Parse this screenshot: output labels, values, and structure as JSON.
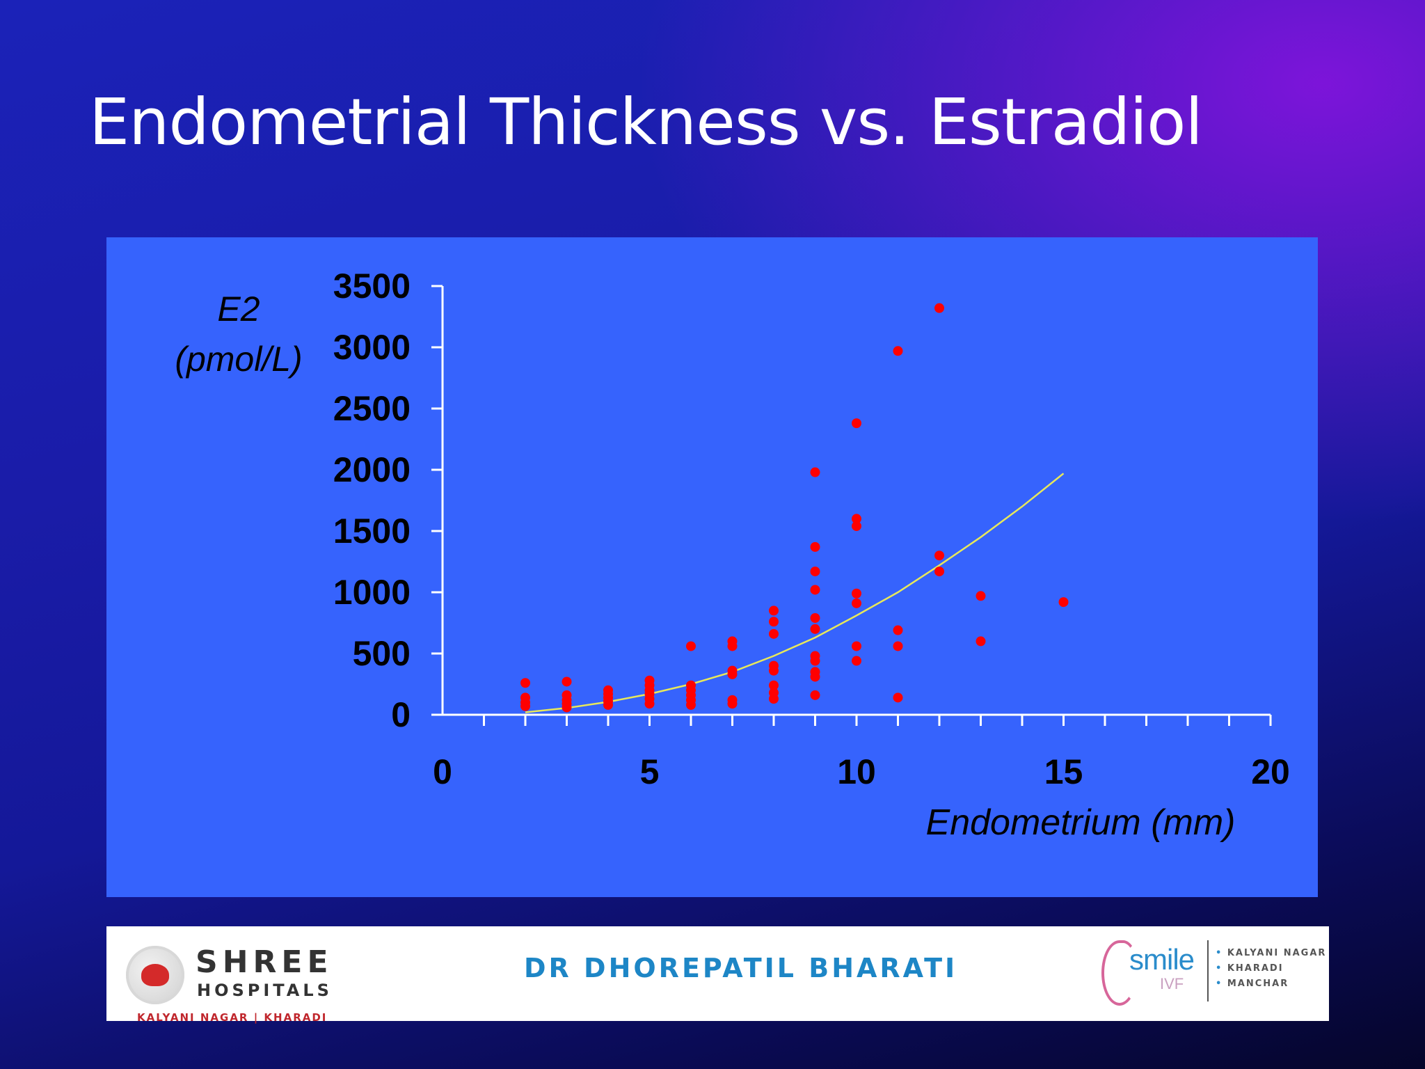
{
  "slide": {
    "title": "Endometrial Thickness vs. Estradiol"
  },
  "chart_data": {
    "type": "scatter",
    "title": "Endometrial Thickness vs. Estradiol",
    "xlabel": "Endometrium (mm)",
    "ylabel_line1": "E2",
    "ylabel_line2": "(pmol/L)",
    "xlim": [
      0,
      20
    ],
    "ylim": [
      0,
      3500
    ],
    "x_ticks": [
      0,
      5,
      10,
      15,
      20
    ],
    "y_ticks": [
      0,
      500,
      1000,
      1500,
      2000,
      2500,
      3000,
      3500
    ],
    "grid": false,
    "colors": {
      "points": "#ff0000",
      "trendline": "#e8e85a",
      "axis": "#ffffff",
      "panel": "#3663fd"
    },
    "series": [
      {
        "name": "Patients",
        "points": [
          [
            2,
            260
          ],
          [
            2,
            140
          ],
          [
            2,
            100
          ],
          [
            2,
            70
          ],
          [
            3,
            270
          ],
          [
            3,
            160
          ],
          [
            3,
            120
          ],
          [
            3,
            90
          ],
          [
            3,
            60
          ],
          [
            4,
            200
          ],
          [
            4,
            170
          ],
          [
            4,
            140
          ],
          [
            4,
            110
          ],
          [
            4,
            80
          ],
          [
            5,
            280
          ],
          [
            5,
            240
          ],
          [
            5,
            200
          ],
          [
            5,
            170
          ],
          [
            5,
            130
          ],
          [
            5,
            90
          ],
          [
            6,
            560
          ],
          [
            6,
            240
          ],
          [
            6,
            200
          ],
          [
            6,
            160
          ],
          [
            6,
            120
          ],
          [
            6,
            80
          ],
          [
            7,
            600
          ],
          [
            7,
            560
          ],
          [
            7,
            360
          ],
          [
            7,
            330
          ],
          [
            7,
            120
          ],
          [
            7,
            90
          ],
          [
            8,
            850
          ],
          [
            8,
            760
          ],
          [
            8,
            660
          ],
          [
            8,
            400
          ],
          [
            8,
            360
          ],
          [
            8,
            240
          ],
          [
            8,
            180
          ],
          [
            8,
            130
          ],
          [
            9,
            1980
          ],
          [
            9,
            1370
          ],
          [
            9,
            1170
          ],
          [
            9,
            1020
          ],
          [
            9,
            790
          ],
          [
            9,
            700
          ],
          [
            9,
            480
          ],
          [
            9,
            440
          ],
          [
            9,
            350
          ],
          [
            9,
            310
          ],
          [
            9,
            160
          ],
          [
            10,
            2380
          ],
          [
            10,
            1600
          ],
          [
            10,
            1540
          ],
          [
            10,
            990
          ],
          [
            10,
            910
          ],
          [
            10,
            560
          ],
          [
            10,
            440
          ],
          [
            11,
            2970
          ],
          [
            11,
            690
          ],
          [
            11,
            560
          ],
          [
            11,
            140
          ],
          [
            12,
            3320
          ],
          [
            12,
            1300
          ],
          [
            12,
            1170
          ],
          [
            13,
            970
          ],
          [
            13,
            600
          ],
          [
            15,
            920
          ]
        ]
      }
    ],
    "trendline": {
      "type": "power",
      "points": [
        [
          2,
          20
        ],
        [
          3,
          55
        ],
        [
          4,
          105
        ],
        [
          5,
          170
        ],
        [
          6,
          250
        ],
        [
          7,
          350
        ],
        [
          8,
          480
        ],
        [
          9,
          630
        ],
        [
          10,
          810
        ],
        [
          11,
          1000
        ],
        [
          12,
          1220
        ],
        [
          13,
          1450
        ],
        [
          14,
          1700
        ],
        [
          15,
          1970
        ]
      ]
    }
  },
  "footer": {
    "left_logo": {
      "name": "SHREE",
      "subtitle": "HOSPITALS",
      "locations": "KALYANI NAGAR  |  KHARADI"
    },
    "doctor": "DR  DHOREPATIL  BHARATI",
    "right_logo": {
      "brand": "smile",
      "sub": "IVF",
      "locations": [
        "KALYANI NAGAR",
        "KHARADI",
        "MANCHAR"
      ]
    }
  }
}
